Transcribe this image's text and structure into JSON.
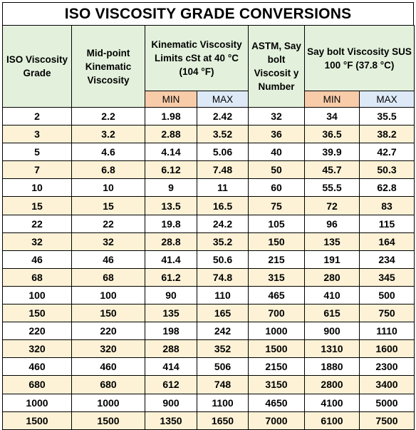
{
  "title": "ISO VISCOSITY GRADE CONVERSIONS",
  "headers": {
    "iso_grade": "ISO Viscosity Grade",
    "midpoint": "Mid-point Kinematic Viscosity",
    "kinematic_limits": "Kinematic Viscosity Limits cSt at 40 °C (104 °F)",
    "astm": "ASTM, Say bolt Viscosit y Number",
    "saybolt": "Say bolt Viscosity SUS 100 °F (37.8 °C)",
    "min": "MIN",
    "max": "MAX"
  },
  "rows": [
    [
      "2",
      "2.2",
      "1.98",
      "2.42",
      "32",
      "34",
      "35.5"
    ],
    [
      "3",
      "3.2",
      "2.88",
      "3.52",
      "36",
      "36.5",
      "38.2"
    ],
    [
      "5",
      "4.6",
      "4.14",
      "5.06",
      "40",
      "39.9",
      "42.7"
    ],
    [
      "7",
      "6.8",
      "6.12",
      "7.48",
      "50",
      "45.7",
      "50.3"
    ],
    [
      "10",
      "10",
      "9",
      "11",
      "60",
      "55.5",
      "62.8"
    ],
    [
      "15",
      "15",
      "13.5",
      "16.5",
      "75",
      "72",
      "83"
    ],
    [
      "22",
      "22",
      "19.8",
      "24.2",
      "105",
      "96",
      "115"
    ],
    [
      "32",
      "32",
      "28.8",
      "35.2",
      "150",
      "135",
      "164"
    ],
    [
      "46",
      "46",
      "41.4",
      "50.6",
      "215",
      "191",
      "234"
    ],
    [
      "68",
      "68",
      "61.2",
      "74.8",
      "315",
      "280",
      "345"
    ],
    [
      "100",
      "100",
      "90",
      "110",
      "465",
      "410",
      "500"
    ],
    [
      "150",
      "150",
      "135",
      "165",
      "700",
      "615",
      "750"
    ],
    [
      "220",
      "220",
      "198",
      "242",
      "1000",
      "900",
      "1110"
    ],
    [
      "320",
      "320",
      "288",
      "352",
      "1500",
      "1310",
      "1600"
    ],
    [
      "460",
      "460",
      "414",
      "506",
      "2150",
      "1880",
      "2300"
    ],
    [
      "680",
      "680",
      "612",
      "748",
      "3150",
      "2800",
      "3400"
    ],
    [
      "1000",
      "1000",
      "900",
      "1100",
      "4650",
      "4100",
      "5000"
    ],
    [
      "1500",
      "1500",
      "1350",
      "1650",
      "7000",
      "6100",
      "7500"
    ]
  ],
  "colors": {
    "header_bg": "#e3f1dc",
    "min_bg": "#f9cca9",
    "max_bg": "#dde9f6",
    "row_alt_bg": "#fdf2d6"
  }
}
